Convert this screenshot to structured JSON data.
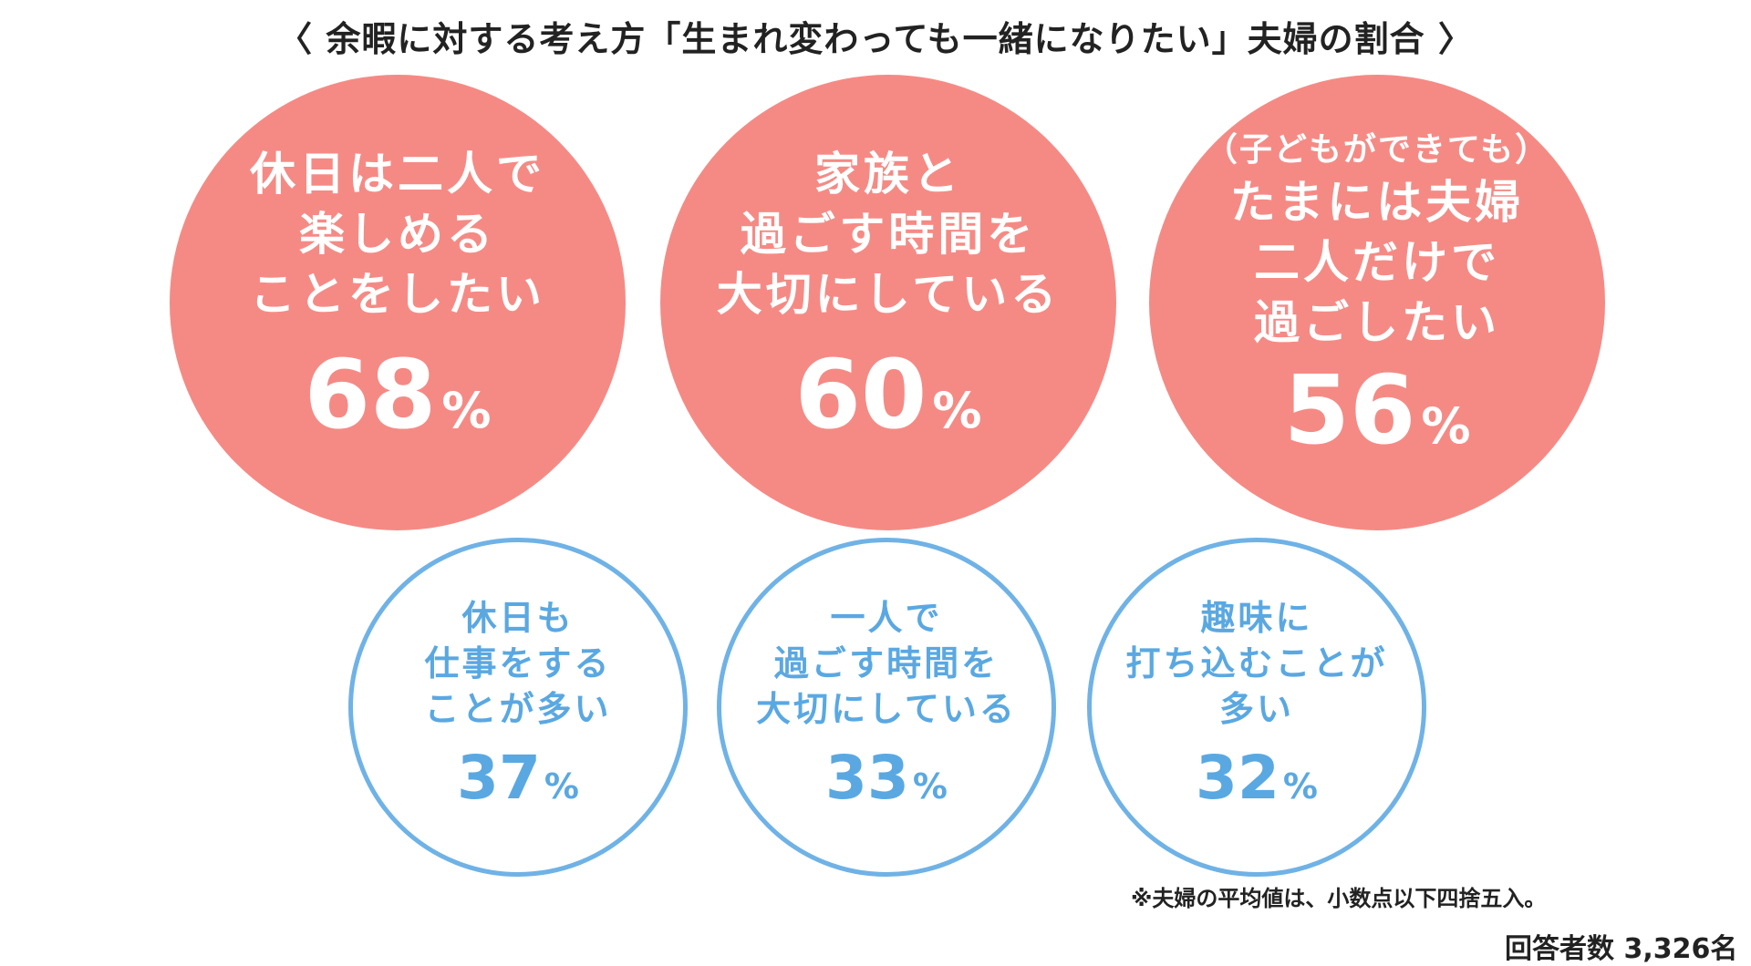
{
  "chart_data": {
    "type": "bubble-infographic",
    "title": "〈 余暇に対する考え方「生まれ変わっても一緒になりたい」夫婦の割合 〉",
    "unit": "%",
    "items": [
      {
        "group": "top",
        "lines": [
          "休日は二人で",
          "楽しめる",
          "ことをしたい"
        ],
        "value": 68,
        "color": "#f58a85"
      },
      {
        "group": "top",
        "sub": "（子どもができても）",
        "lines": [
          "たまには夫婦",
          "二人だけで",
          "過ごしたい"
        ],
        "value": 56,
        "color": "#f58a85"
      },
      {
        "group": "top",
        "lines": [
          "家族と",
          "過ごす時間を",
          "大切にしている"
        ],
        "value": 60,
        "color": "#f58a85"
      },
      {
        "group": "bottom",
        "lines": [
          "休日も",
          "仕事をする",
          "ことが多い"
        ],
        "value": 37,
        "color": "#6fb2e6"
      },
      {
        "group": "bottom",
        "lines": [
          "一人で",
          "過ごす時間を",
          "大切にしている"
        ],
        "value": 33,
        "color": "#6fb2e6"
      },
      {
        "group": "bottom",
        "lines": [
          "趣味に",
          "打ち込むことが",
          "多い"
        ],
        "value": 32,
        "color": "#6fb2e6"
      }
    ],
    "note": "※夫婦の平均値は、小数点以下四捨五入。",
    "respondents": "回答者数 3,326名"
  }
}
